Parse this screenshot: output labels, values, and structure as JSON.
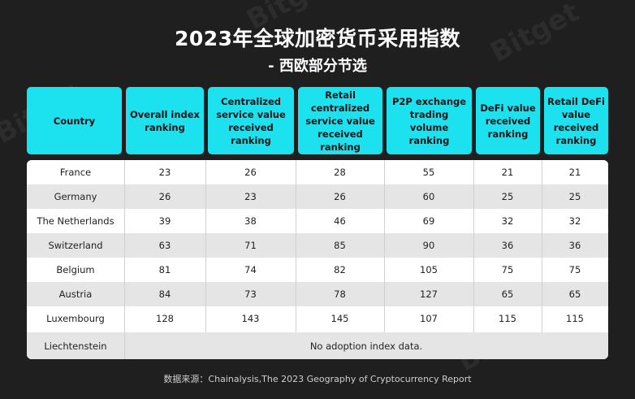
{
  "title": "2023年全球加密货币采用指数",
  "subtitle": "- 西欧部分节选",
  "colors": {
    "background": "#1f1f1f",
    "header": "#1ce2f0",
    "row_alt": "#e5e5e5",
    "row_white": "#ffffff"
  },
  "headers": [
    "Country",
    "Overall index ranking",
    "Centralized service value received ranking",
    "Retail centralized service value received ranking",
    "P2P exchange trading volume ranking",
    "DeFi value received ranking",
    "Retail DeFi value received ranking"
  ],
  "rows": [
    {
      "country": "France",
      "values": [
        "23",
        "26",
        "28",
        "55",
        "21",
        "21"
      ]
    },
    {
      "country": "Germany",
      "values": [
        "26",
        "23",
        "26",
        "60",
        "25",
        "25"
      ]
    },
    {
      "country": "The Netherlands",
      "values": [
        "39",
        "38",
        "46",
        "69",
        "32",
        "32"
      ]
    },
    {
      "country": "Switzerland",
      "values": [
        "63",
        "71",
        "85",
        "90",
        "36",
        "36"
      ]
    },
    {
      "country": "Belgium",
      "values": [
        "81",
        "74",
        "82",
        "105",
        "75",
        "75"
      ]
    },
    {
      "country": "Austria",
      "values": [
        "84",
        "73",
        "78",
        "127",
        "65",
        "65"
      ]
    },
    {
      "country": "Luxembourg",
      "values": [
        "128",
        "143",
        "145",
        "107",
        "115",
        "115"
      ]
    }
  ],
  "last_row": {
    "country": "Liechtenstein",
    "note": "No adoption index data."
  },
  "source": "数据来源：Chainalysis,The 2023 Geography of Cryptocurrency Report",
  "watermark": "Bitget"
}
